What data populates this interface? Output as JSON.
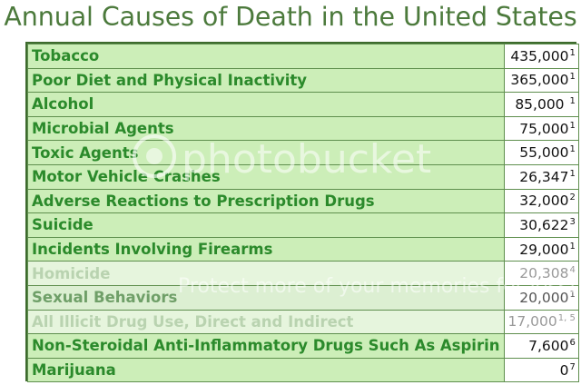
{
  "title": "Annual Causes of Death in the United States",
  "rows": [
    {
      "cause": "Tobacco",
      "value": "435,000",
      "note": "1",
      "style": "normal"
    },
    {
      "cause": "Poor Diet and Physical Inactivity",
      "value": "365,000",
      "note": "1",
      "style": "normal"
    },
    {
      "cause": "Alcohol",
      "value": "85,000 ",
      "note": "1",
      "style": "normal"
    },
    {
      "cause": "Microbial Agents",
      "value": "75,000",
      "note": "1",
      "style": "normal"
    },
    {
      "cause": "Toxic Agents",
      "value": "55,000",
      "note": "1",
      "style": "normal"
    },
    {
      "cause": "Motor Vehicle Crashes",
      "value": "26,347",
      "note": "1",
      "style": "normal"
    },
    {
      "cause": "Adverse Reactions to Prescription Drugs",
      "value": "32,000",
      "note": "2",
      "style": "normal"
    },
    {
      "cause": "Suicide",
      "value": "30,622",
      "note": "3",
      "style": "normal"
    },
    {
      "cause": "Incidents Involving Firearms",
      "value": "29,000",
      "note": "1",
      "style": "normal"
    },
    {
      "cause": "Homicide",
      "value": "20,308",
      "note": "4",
      "style": "faded"
    },
    {
      "cause": "Sexual Behaviors",
      "value": "20,000",
      "note": "1",
      "style": "semifaded"
    },
    {
      "cause": "All Illicit Drug Use, Direct and Indirect",
      "value": "17,000",
      "note": "1, 5",
      "style": "faded"
    },
    {
      "cause": "Non-Steroidal Anti-Inflammatory Drugs Such As Aspirin",
      "value": "7,600",
      "note": "6",
      "style": "normal"
    },
    {
      "cause": "Marijuana",
      "value": "0",
      "note": "7",
      "style": "normal"
    }
  ],
  "watermark": {
    "logo_text": "photobucket",
    "tagline": "Protect more of your memories for less!"
  },
  "colors": {
    "title": "#4c7a3c",
    "cause_text": "#2b8a2b",
    "cause_bg": "#cceeb8",
    "border": "#3e6b2e"
  }
}
